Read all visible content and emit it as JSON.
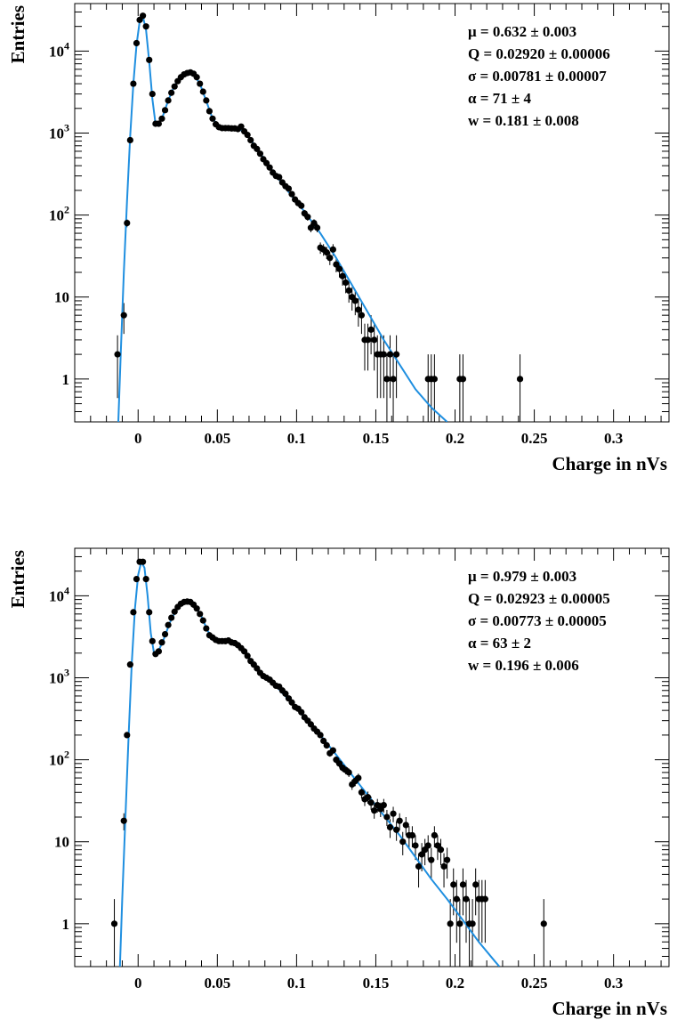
{
  "chart_data": [
    {
      "type": "scatter",
      "xlabel": "Charge in nVs",
      "ylabel": "Entries",
      "xlim": [
        -0.04,
        0.335
      ],
      "ylim": [
        0.3,
        38000
      ],
      "yscale": "log",
      "x_ticks": [
        {
          "value": 0,
          "label": "0"
        },
        {
          "value": 0.05,
          "label": "0.05"
        },
        {
          "value": 0.1,
          "label": "0.1"
        },
        {
          "value": 0.15,
          "label": "0.15"
        },
        {
          "value": 0.2,
          "label": "0.2"
        },
        {
          "value": 0.25,
          "label": "0.25"
        },
        {
          "value": 0.3,
          "label": "0.3"
        }
      ],
      "y_ticks": [
        {
          "value": 1,
          "base": "1",
          "exp": ""
        },
        {
          "value": 10,
          "base": "10",
          "exp": ""
        },
        {
          "value": 100,
          "base": "10",
          "exp": "2"
        },
        {
          "value": 1000,
          "base": "10",
          "exp": "3"
        },
        {
          "value": 10000,
          "base": "10",
          "exp": "4"
        }
      ],
      "stats": [
        {
          "symbol": "μ",
          "value": "0.632",
          "error": "0.003"
        },
        {
          "symbol": "Q",
          "value": "0.02920",
          "error": "0.00006"
        },
        {
          "symbol": "σ",
          "value": "0.00781",
          "error": "0.00007"
        },
        {
          "symbol": "α",
          "value": "71",
          "error": "4"
        },
        {
          "symbol": "w",
          "value": "0.181",
          "error": "0.008"
        }
      ],
      "points": [
        [
          -0.013,
          2
        ],
        [
          -0.009,
          6
        ],
        [
          -0.007,
          80
        ],
        [
          -0.005,
          820
        ],
        [
          -0.003,
          4000
        ],
        [
          -0.001,
          12500
        ],
        [
          0.001,
          24000
        ],
        [
          0.003,
          27000
        ],
        [
          0.005,
          20000
        ],
        [
          0.007,
          7800
        ],
        [
          0.009,
          3000
        ],
        [
          0.011,
          1300
        ],
        [
          0.013,
          1300
        ],
        [
          0.015,
          1500
        ],
        [
          0.017,
          1900
        ],
        [
          0.019,
          2500
        ],
        [
          0.021,
          3100
        ],
        [
          0.023,
          3700
        ],
        [
          0.025,
          4300
        ],
        [
          0.027,
          4800
        ],
        [
          0.029,
          5200
        ],
        [
          0.031,
          5400
        ],
        [
          0.033,
          5500
        ],
        [
          0.035,
          5300
        ],
        [
          0.037,
          4800
        ],
        [
          0.039,
          4000
        ],
        [
          0.041,
          3200
        ],
        [
          0.043,
          2500
        ],
        [
          0.045,
          1850
        ],
        [
          0.047,
          1500
        ],
        [
          0.049,
          1280
        ],
        [
          0.051,
          1180
        ],
        [
          0.053,
          1150
        ],
        [
          0.055,
          1150
        ],
        [
          0.057,
          1150
        ],
        [
          0.059,
          1140
        ],
        [
          0.061,
          1140
        ],
        [
          0.063,
          1120
        ],
        [
          0.065,
          1200
        ],
        [
          0.067,
          1050
        ],
        [
          0.069,
          950
        ],
        [
          0.071,
          820
        ],
        [
          0.073,
          700
        ],
        [
          0.075,
          640
        ],
        [
          0.077,
          560
        ],
        [
          0.079,
          480
        ],
        [
          0.081,
          430
        ],
        [
          0.083,
          380
        ],
        [
          0.085,
          330
        ],
        [
          0.087,
          300
        ],
        [
          0.089,
          290
        ],
        [
          0.091,
          250
        ],
        [
          0.093,
          225
        ],
        [
          0.095,
          210
        ],
        [
          0.097,
          180
        ],
        [
          0.099,
          155
        ],
        [
          0.101,
          140
        ],
        [
          0.103,
          130
        ],
        [
          0.105,
          105
        ],
        [
          0.107,
          95
        ],
        [
          0.109,
          70
        ],
        [
          0.111,
          80
        ],
        [
          0.113,
          70
        ],
        [
          0.115,
          40
        ],
        [
          0.117,
          38
        ],
        [
          0.119,
          35
        ],
        [
          0.121,
          30
        ],
        [
          0.123,
          38
        ],
        [
          0.125,
          25
        ],
        [
          0.127,
          22
        ],
        [
          0.129,
          18
        ],
        [
          0.131,
          15
        ],
        [
          0.133,
          12
        ],
        [
          0.135,
          10
        ],
        [
          0.137,
          9
        ],
        [
          0.139,
          7
        ],
        [
          0.141,
          6
        ],
        [
          0.143,
          3
        ],
        [
          0.145,
          3
        ],
        [
          0.147,
          4
        ],
        [
          0.149,
          3
        ],
        [
          0.151,
          2
        ],
        [
          0.153,
          2
        ],
        [
          0.155,
          2
        ],
        [
          0.157,
          1
        ],
        [
          0.159,
          2
        ],
        [
          0.161,
          1
        ],
        [
          0.163,
          2
        ],
        [
          0.183,
          1
        ],
        [
          0.185,
          1
        ],
        [
          0.187,
          1
        ],
        [
          0.203,
          1
        ],
        [
          0.205,
          1
        ],
        [
          0.241,
          1
        ]
      ],
      "fit_curve": [
        [
          -0.0125,
          0.3
        ],
        [
          -0.011,
          2
        ],
        [
          -0.009,
          20
        ],
        [
          -0.007,
          150
        ],
        [
          -0.005,
          900
        ],
        [
          -0.003,
          4000
        ],
        [
          -0.001,
          12000
        ],
        [
          0.001,
          23000
        ],
        [
          0.003,
          26500
        ],
        [
          0.005,
          18000
        ],
        [
          0.007,
          7500
        ],
        [
          0.009,
          2600
        ],
        [
          0.011,
          1300
        ],
        [
          0.013,
          1300
        ],
        [
          0.015,
          1500
        ],
        [
          0.019,
          2500
        ],
        [
          0.023,
          3800
        ],
        [
          0.027,
          4900
        ],
        [
          0.031,
          5450
        ],
        [
          0.035,
          5250
        ],
        [
          0.039,
          4000
        ],
        [
          0.043,
          2450
        ],
        [
          0.047,
          1500
        ],
        [
          0.051,
          1200
        ],
        [
          0.055,
          1150
        ],
        [
          0.061,
          1130
        ],
        [
          0.065,
          1080
        ],
        [
          0.069,
          930
        ],
        [
          0.075,
          650
        ],
        [
          0.085,
          340
        ],
        [
          0.095,
          190
        ],
        [
          0.105,
          110
        ],
        [
          0.115,
          60
        ],
        [
          0.125,
          30
        ],
        [
          0.135,
          14
        ],
        [
          0.145,
          6.5
        ],
        [
          0.155,
          3
        ],
        [
          0.165,
          1.5
        ],
        [
          0.175,
          0.75
        ],
        [
          0.185,
          0.45
        ],
        [
          0.195,
          0.3
        ]
      ]
    },
    {
      "type": "scatter",
      "xlabel": "Charge in nVs",
      "ylabel": "Entries",
      "xlim": [
        -0.04,
        0.335
      ],
      "ylim": [
        0.3,
        38000
      ],
      "yscale": "log",
      "x_ticks": [
        {
          "value": 0,
          "label": "0"
        },
        {
          "value": 0.05,
          "label": "0.05"
        },
        {
          "value": 0.1,
          "label": "0.1"
        },
        {
          "value": 0.15,
          "label": "0.15"
        },
        {
          "value": 0.2,
          "label": "0.2"
        },
        {
          "value": 0.25,
          "label": "0.25"
        },
        {
          "value": 0.3,
          "label": "0.3"
        }
      ],
      "y_ticks": [
        {
          "value": 1,
          "base": "1",
          "exp": ""
        },
        {
          "value": 10,
          "base": "10",
          "exp": ""
        },
        {
          "value": 100,
          "base": "10",
          "exp": "2"
        },
        {
          "value": 1000,
          "base": "10",
          "exp": "3"
        },
        {
          "value": 10000,
          "base": "10",
          "exp": "4"
        }
      ],
      "stats": [
        {
          "symbol": "μ",
          "value": "0.979",
          "error": "0.003"
        },
        {
          "symbol": "Q",
          "value": "0.02923",
          "error": "0.00005"
        },
        {
          "symbol": "σ",
          "value": "0.00773",
          "error": "0.00005"
        },
        {
          "symbol": "α",
          "value": "63",
          "error": "2"
        },
        {
          "symbol": "w",
          "value": "0.196",
          "error": "0.006"
        }
      ],
      "points": [
        [
          -0.015,
          1
        ],
        [
          -0.009,
          18
        ],
        [
          -0.007,
          200
        ],
        [
          -0.005,
          1450
        ],
        [
          -0.003,
          6300
        ],
        [
          -0.001,
          16000
        ],
        [
          0.001,
          26000
        ],
        [
          0.003,
          26000
        ],
        [
          0.005,
          16000
        ],
        [
          0.007,
          6300
        ],
        [
          0.009,
          2800
        ],
        [
          0.011,
          1950
        ],
        [
          0.013,
          2100
        ],
        [
          0.015,
          2700
        ],
        [
          0.017,
          3400
        ],
        [
          0.019,
          4400
        ],
        [
          0.021,
          5400
        ],
        [
          0.023,
          6400
        ],
        [
          0.025,
          7300
        ],
        [
          0.027,
          8000
        ],
        [
          0.029,
          8400
        ],
        [
          0.031,
          8500
        ],
        [
          0.033,
          8400
        ],
        [
          0.035,
          7800
        ],
        [
          0.037,
          7000
        ],
        [
          0.039,
          6000
        ],
        [
          0.041,
          5000
        ],
        [
          0.043,
          4000
        ],
        [
          0.045,
          3300
        ],
        [
          0.047,
          3100
        ],
        [
          0.049,
          2900
        ],
        [
          0.051,
          2800
        ],
        [
          0.053,
          2800
        ],
        [
          0.055,
          2800
        ],
        [
          0.057,
          2850
        ],
        [
          0.059,
          2700
        ],
        [
          0.061,
          2650
        ],
        [
          0.063,
          2500
        ],
        [
          0.065,
          2300
        ],
        [
          0.067,
          2100
        ],
        [
          0.069,
          1850
        ],
        [
          0.071,
          1600
        ],
        [
          0.073,
          1450
        ],
        [
          0.075,
          1300
        ],
        [
          0.077,
          1150
        ],
        [
          0.079,
          1050
        ],
        [
          0.081,
          1000
        ],
        [
          0.083,
          950
        ],
        [
          0.085,
          870
        ],
        [
          0.087,
          800
        ],
        [
          0.089,
          780
        ],
        [
          0.091,
          700
        ],
        [
          0.093,
          640
        ],
        [
          0.095,
          560
        ],
        [
          0.097,
          500
        ],
        [
          0.099,
          440
        ],
        [
          0.101,
          420
        ],
        [
          0.103,
          380
        ],
        [
          0.105,
          330
        ],
        [
          0.107,
          300
        ],
        [
          0.109,
          270
        ],
        [
          0.111,
          240
        ],
        [
          0.113,
          220
        ],
        [
          0.115,
          200
        ],
        [
          0.117,
          170
        ],
        [
          0.119,
          150
        ],
        [
          0.121,
          120
        ],
        [
          0.123,
          130
        ],
        [
          0.125,
          100
        ],
        [
          0.127,
          90
        ],
        [
          0.129,
          80
        ],
        [
          0.131,
          75
        ],
        [
          0.133,
          70
        ],
        [
          0.135,
          50
        ],
        [
          0.137,
          55
        ],
        [
          0.139,
          60
        ],
        [
          0.141,
          40
        ],
        [
          0.143,
          33
        ],
        [
          0.145,
          35
        ],
        [
          0.147,
          30
        ],
        [
          0.149,
          24
        ],
        [
          0.151,
          28
        ],
        [
          0.153,
          25
        ],
        [
          0.155,
          28
        ],
        [
          0.157,
          20
        ],
        [
          0.159,
          15
        ],
        [
          0.161,
          22
        ],
        [
          0.163,
          14
        ],
        [
          0.165,
          18
        ],
        [
          0.167,
          10
        ],
        [
          0.169,
          16
        ],
        [
          0.171,
          12
        ],
        [
          0.173,
          12
        ],
        [
          0.175,
          9
        ],
        [
          0.177,
          5
        ],
        [
          0.179,
          7
        ],
        [
          0.181,
          8
        ],
        [
          0.183,
          9
        ],
        [
          0.185,
          6
        ],
        [
          0.187,
          12
        ],
        [
          0.189,
          9
        ],
        [
          0.191,
          8
        ],
        [
          0.193,
          5
        ],
        [
          0.195,
          6
        ],
        [
          0.197,
          1
        ],
        [
          0.199,
          3
        ],
        [
          0.201,
          2
        ],
        [
          0.203,
          1
        ],
        [
          0.205,
          3
        ],
        [
          0.207,
          2
        ],
        [
          0.209,
          1
        ],
        [
          0.211,
          1
        ],
        [
          0.213,
          3
        ],
        [
          0.215,
          2
        ],
        [
          0.217,
          2
        ],
        [
          0.219,
          2
        ],
        [
          0.256,
          1
        ]
      ],
      "fit_curve": [
        [
          -0.0115,
          0.3
        ],
        [
          -0.01,
          2
        ],
        [
          -0.008,
          20
        ],
        [
          -0.006,
          200
        ],
        [
          -0.004,
          1500
        ],
        [
          -0.002,
          7000
        ],
        [
          0,
          18000
        ],
        [
          0.002,
          26000
        ],
        [
          0.004,
          22000
        ],
        [
          0.006,
          10000
        ],
        [
          0.008,
          3500
        ],
        [
          0.01,
          2000
        ],
        [
          0.012,
          1950
        ],
        [
          0.016,
          2900
        ],
        [
          0.02,
          4700
        ],
        [
          0.024,
          6700
        ],
        [
          0.028,
          8200
        ],
        [
          0.032,
          8500
        ],
        [
          0.036,
          7500
        ],
        [
          0.04,
          5600
        ],
        [
          0.044,
          3700
        ],
        [
          0.048,
          3000
        ],
        [
          0.052,
          2800
        ],
        [
          0.058,
          2750
        ],
        [
          0.064,
          2400
        ],
        [
          0.07,
          1750
        ],
        [
          0.076,
          1250
        ],
        [
          0.085,
          870
        ],
        [
          0.095,
          540
        ],
        [
          0.105,
          330
        ],
        [
          0.115,
          200
        ],
        [
          0.125,
          115
        ],
        [
          0.135,
          65
        ],
        [
          0.145,
          37
        ],
        [
          0.155,
          21
        ],
        [
          0.165,
          12
        ],
        [
          0.175,
          6.5
        ],
        [
          0.185,
          3.5
        ],
        [
          0.195,
          2
        ],
        [
          0.205,
          1.1
        ],
        [
          0.215,
          0.6
        ],
        [
          0.225,
          0.35
        ],
        [
          0.228,
          0.3
        ]
      ]
    }
  ],
  "colors": {
    "fit_line": "#1f8fe0",
    "markers": "#000000",
    "axes": "#000000",
    "background": "#ffffff"
  }
}
